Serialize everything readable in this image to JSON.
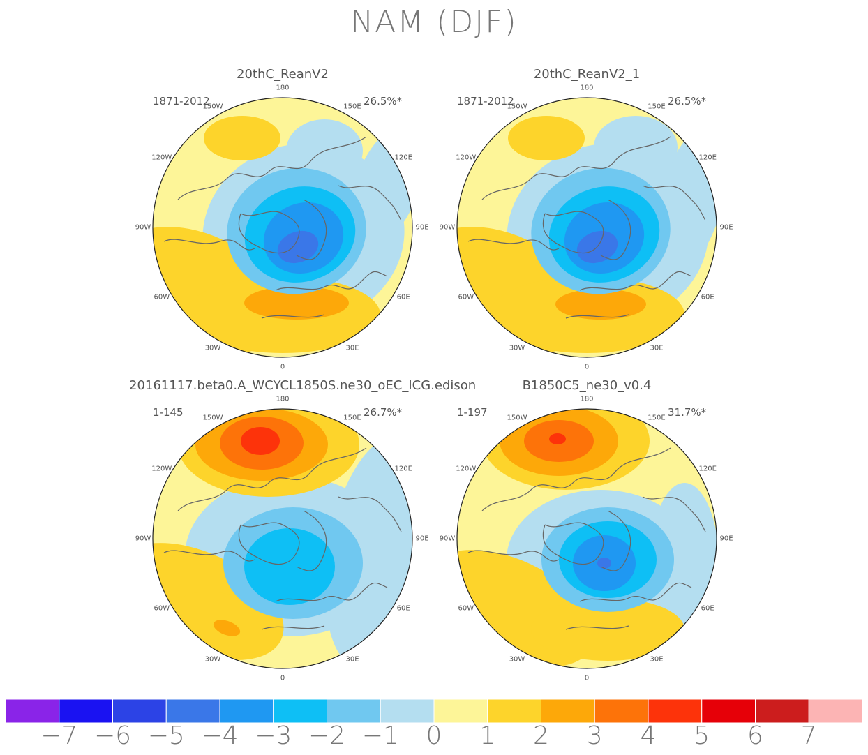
{
  "figure": {
    "title": "NAM (DJF)"
  },
  "panels": [
    {
      "title": "20thC_ReanV2",
      "period": "1871-2012",
      "variance": "26.5%*",
      "lon_labels": {
        "180": "180",
        "150W": "150W",
        "150E": "150E",
        "120W": "120W",
        "120E": "120E",
        "90W": "90W",
        "90E": "90E",
        "60W": "60W",
        "60E": "60E",
        "30W": "30W",
        "30E": "30E",
        "0": "0"
      }
    },
    {
      "title": "20thC_ReanV2_1",
      "period": "1871-2012",
      "variance": "26.5%*",
      "lon_labels": {
        "180": "180",
        "150W": "150W",
        "150E": "150E",
        "120W": "120W",
        "120E": "120E",
        "90W": "90W",
        "90E": "90E",
        "60W": "60W",
        "60E": "60E",
        "30W": "30W",
        "30E": "30E",
        "0": "0"
      }
    },
    {
      "title": "20161117.beta0.A_WCYCL1850S.ne30_oEC_ICG.edison",
      "period": "1-145",
      "variance": "26.7%*",
      "lon_labels": {
        "180": "180",
        "150W": "150W",
        "150E": "150E",
        "120W": "120W",
        "120E": "120E",
        "90W": "90W",
        "90E": "90E",
        "60W": "60W",
        "60E": "60E",
        "30W": "30W",
        "30E": "30E",
        "0": "0"
      }
    },
    {
      "title": "B1850C5_ne30_v0.4",
      "period": "1-197",
      "variance": "31.7%*",
      "lon_labels": {
        "180": "180",
        "150W": "150W",
        "150E": "150E",
        "120W": "120W",
        "120E": "120E",
        "90W": "90W",
        "90E": "90E",
        "60W": "60W",
        "60E": "60E",
        "30W": "30W",
        "30E": "30E",
        "0": "0"
      }
    }
  ],
  "colorbar": {
    "labels": [
      "−7",
      "−6",
      "−5",
      "−4",
      "−3",
      "−2",
      "−1",
      "0",
      "1",
      "2",
      "3",
      "4",
      "5",
      "6",
      "7"
    ],
    "colors": [
      "#8a24e8",
      "#1a12f2",
      "#2c43e6",
      "#3a77e8",
      "#1f98f2",
      "#0ebff5",
      "#70c8f0",
      "#b4def0",
      "#fdf598",
      "#fdd42b",
      "#fda809",
      "#fd7309",
      "#fd330a",
      "#e60008",
      "#cc1d1d",
      "#fcb4b4"
    ]
  },
  "colors": {
    "land_outline": "#666666",
    "background_zero": "#fdf598"
  }
}
